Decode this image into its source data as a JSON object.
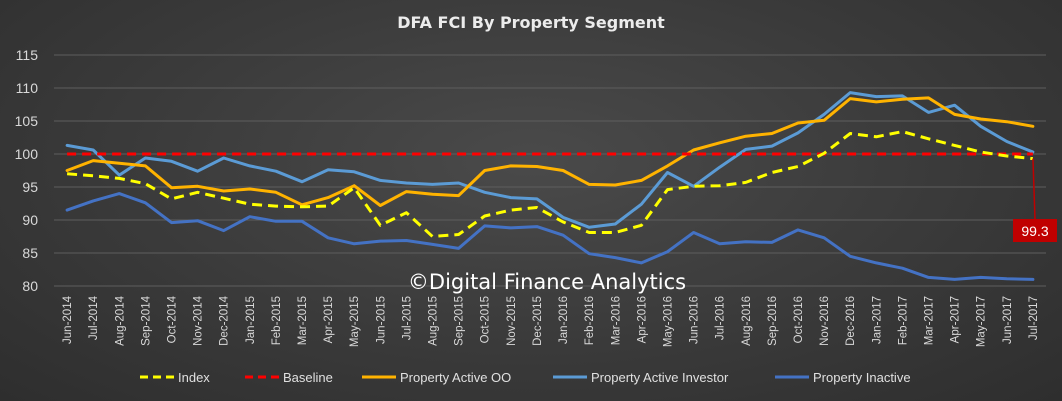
{
  "chart_data": {
    "type": "line",
    "title": "DFA FCI By Property Segment",
    "xlabel": "",
    "ylabel": "",
    "ylim": [
      80,
      115
    ],
    "yticks": [
      80,
      85,
      90,
      95,
      100,
      105,
      110,
      115
    ],
    "grid": true,
    "legend_position": "bottom",
    "categories": [
      "Jun-2014",
      "Jul-2014",
      "Aug-2014",
      "Sep-2014",
      "Oct-2014",
      "Nov-2014",
      "Dec-2014",
      "Jan-2015",
      "Feb-2015",
      "Mar-2015",
      "Apr-2015",
      "May-2015",
      "Jun-2015",
      "Jul-2015",
      "Aug-2015",
      "Sep-2015",
      "Oct-2015",
      "Nov-2015",
      "Dec-2015",
      "Jan-2016",
      "Feb-2016",
      "Mar-2016",
      "Apr-2016",
      "May-2016",
      "Jun-2016",
      "Jul-2016",
      "Aug-2016",
      "Sep-2016",
      "Oct-2016",
      "Nov-2016",
      "Dec-2016",
      "Jan-2017",
      "Feb-2017",
      "Mar-2017",
      "Apr-2017",
      "May-2017",
      "Jun-2017",
      "Jul-2017"
    ],
    "series": [
      {
        "name": "Index",
        "color": "#ffff00",
        "style": "dashed",
        "values": [
          97.0,
          96.7,
          96.3,
          95.5,
          93.2,
          94.2,
          93.3,
          92.4,
          92.1,
          92.0,
          92.1,
          94.9,
          89.2,
          91.1,
          87.5,
          87.8,
          90.6,
          91.5,
          91.9,
          89.7,
          88.1,
          88.1,
          89.2,
          94.6,
          95.1,
          95.2,
          95.7,
          97.2,
          98.1,
          100.1,
          103.1,
          102.6,
          103.4,
          102.3,
          101.3,
          100.3,
          99.7,
          99.3
        ]
      },
      {
        "name": "Baseline",
        "color": "#ff0000",
        "style": "dashed",
        "values": [
          100,
          100,
          100,
          100,
          100,
          100,
          100,
          100,
          100,
          100,
          100,
          100,
          100,
          100,
          100,
          100,
          100,
          100,
          100,
          100,
          100,
          100,
          100,
          100,
          100,
          100,
          100,
          100,
          100,
          100,
          100,
          100,
          100,
          100,
          100,
          100,
          100,
          100
        ]
      },
      {
        "name": "Property Active OO",
        "color": "#ffb300",
        "style": "solid",
        "values": [
          97.5,
          99.0,
          98.6,
          98.2,
          94.9,
          95.1,
          94.4,
          94.7,
          94.2,
          92.3,
          93.4,
          95.2,
          92.2,
          94.3,
          93.9,
          93.7,
          97.5,
          98.2,
          98.1,
          97.5,
          95.4,
          95.3,
          96.0,
          98.2,
          100.6,
          101.7,
          102.7,
          103.1,
          104.7,
          105.1,
          108.4,
          107.9,
          108.3,
          108.5,
          106.0,
          105.3,
          104.9,
          104.2
        ]
      },
      {
        "name": "Property Active Investor",
        "color": "#5b9bd5",
        "style": "solid",
        "values": [
          101.3,
          100.6,
          96.8,
          99.4,
          98.9,
          97.4,
          99.4,
          98.2,
          97.4,
          95.8,
          97.6,
          97.3,
          96.0,
          95.6,
          95.4,
          95.6,
          94.2,
          93.4,
          93.2,
          90.4,
          88.9,
          89.4,
          92.4,
          97.2,
          95.1,
          98.0,
          100.7,
          101.2,
          103.2,
          106.0,
          109.3,
          108.7,
          108.8,
          106.3,
          107.4,
          104.2,
          101.9,
          100.3
        ]
      },
      {
        "name": "Property Inactive",
        "color": "#4472c4",
        "style": "solid",
        "values": [
          91.5,
          92.9,
          94.0,
          92.6,
          89.6,
          89.9,
          88.4,
          90.5,
          89.8,
          89.8,
          87.3,
          86.4,
          86.8,
          86.9,
          86.3,
          85.7,
          89.1,
          88.8,
          89.0,
          87.7,
          84.9,
          84.3,
          83.5,
          85.2,
          88.1,
          86.4,
          86.7,
          86.6,
          88.5,
          87.3,
          84.5,
          83.5,
          82.7,
          81.3,
          81.0,
          81.3,
          81.1,
          81.0
        ]
      }
    ],
    "annotations": [
      {
        "text": "99.3",
        "series": "Index",
        "category": "Jul-2017",
        "color": "#c00000"
      }
    ],
    "watermark": "©Digital Finance Analytics"
  }
}
